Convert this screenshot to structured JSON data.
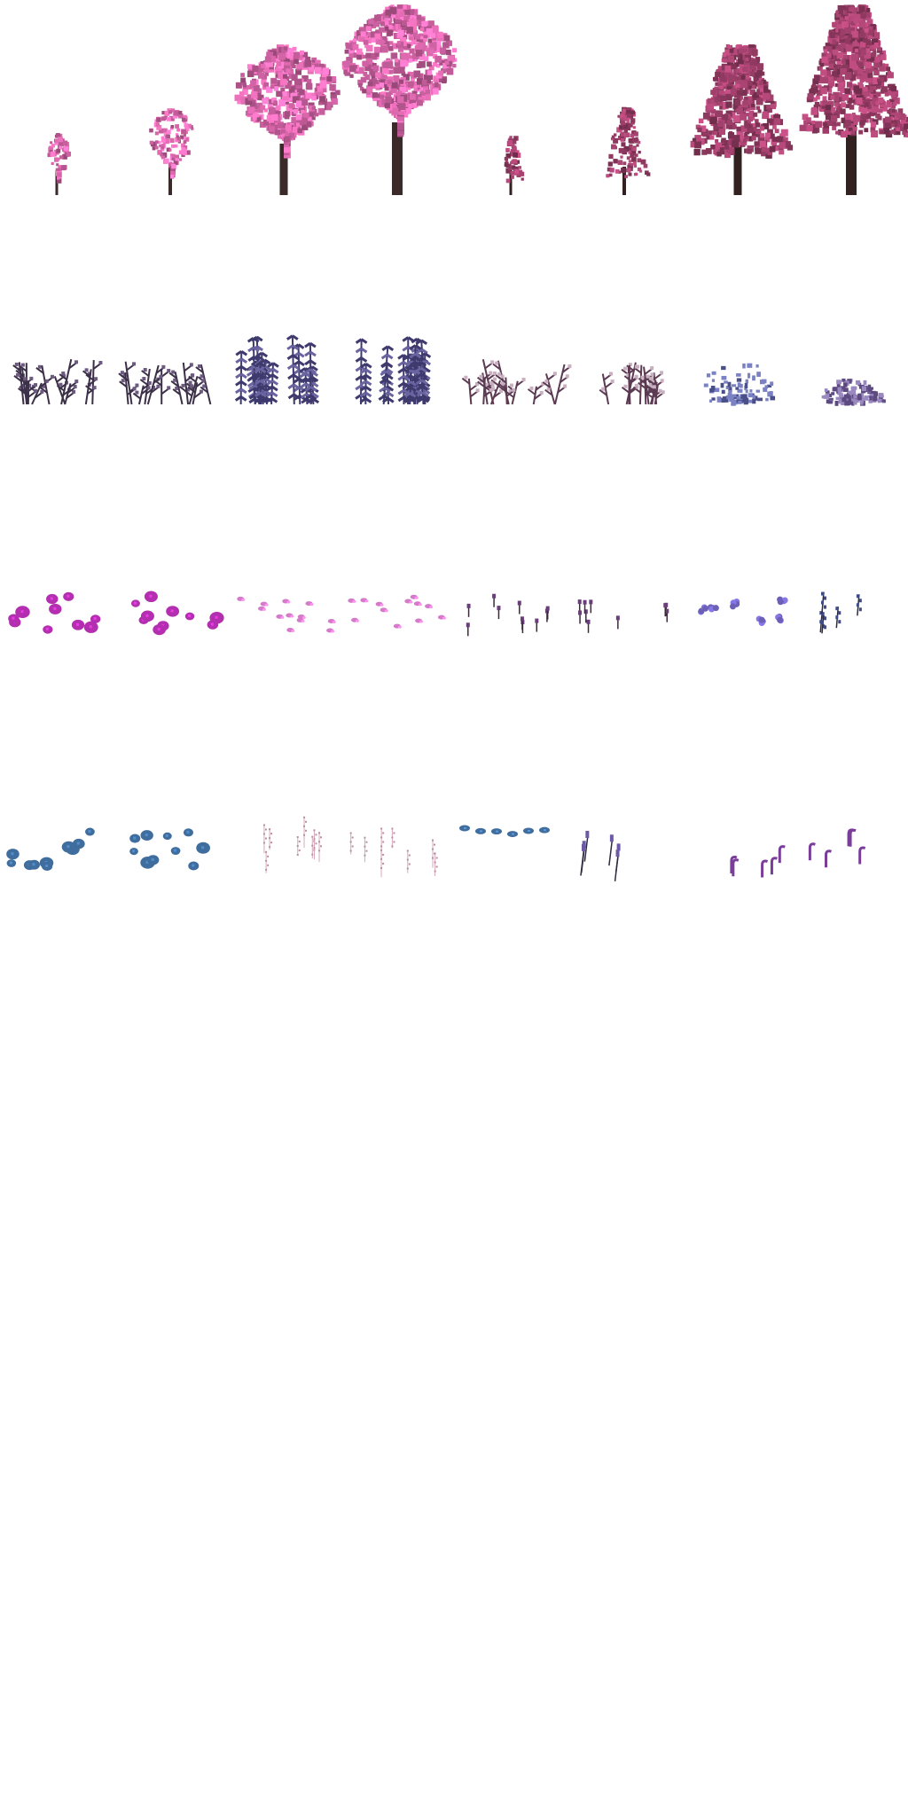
{
  "sheet": {
    "rows": [
      {
        "kind": "trees",
        "sprites": [
          {
            "name": "pink-tree-sapling-sprite",
            "type": "tree",
            "stage": 1,
            "foliage": "#d565a8",
            "trunk": "#3a2a2a"
          },
          {
            "name": "pink-tree-young-sprite",
            "type": "tree",
            "stage": 2,
            "foliage": "#d565a8",
            "trunk": "#3a2a2a"
          },
          {
            "name": "pink-tree-mature-sprite",
            "type": "tree",
            "stage": 3,
            "foliage": "#d565a8",
            "trunk": "#3a2a2a"
          },
          {
            "name": "pink-tree-large-sprite",
            "type": "tree",
            "stage": 4,
            "foliage": "#d565a8",
            "trunk": "#3a2a2a"
          },
          {
            "name": "mauve-tree-sapling-sprite",
            "type": "tree",
            "stage": 1,
            "foliage": "#9e3f6a",
            "trunk": "#332020"
          },
          {
            "name": "mauve-tree-young-sprite",
            "type": "tree",
            "stage": 2,
            "foliage": "#9e3f6a",
            "trunk": "#332020"
          },
          {
            "name": "mauve-tree-mature-sprite",
            "type": "tree",
            "stage": 3,
            "foliage": "#9e3f6a",
            "trunk": "#332020"
          },
          {
            "name": "mauve-tree-large-sprite",
            "type": "tree",
            "stage": 4,
            "foliage": "#9e3f6a",
            "trunk": "#332020"
          }
        ]
      },
      {
        "kind": "shrubs",
        "sprites": [
          {
            "name": "dark-thorn-shrub-a-sprite",
            "type": "shrub",
            "color": "#3b3048",
            "accent": "#6d5a80"
          },
          {
            "name": "dark-thorn-shrub-b-sprite",
            "type": "shrub",
            "color": "#3b3048",
            "accent": "#6d5a80"
          },
          {
            "name": "indigo-fern-shrub-a-sprite",
            "type": "fern",
            "color": "#3f3a6e",
            "accent": "#6a64a0"
          },
          {
            "name": "indigo-fern-shrub-b-sprite",
            "type": "fern",
            "color": "#3f3a6e",
            "accent": "#6a64a0"
          },
          {
            "name": "mauve-speckled-shrub-a-sprite",
            "type": "speckled",
            "color": "#5b3a52",
            "accent": "#c8b0c0"
          },
          {
            "name": "mauve-speckled-shrub-b-sprite",
            "type": "speckled",
            "color": "#5b3a52",
            "accent": "#c8b0c0"
          },
          {
            "name": "blue-violet-bush-sprite",
            "type": "bush",
            "color": "#4a4f8a",
            "accent": "#7a82c4"
          },
          {
            "name": "lavender-bush-sprite",
            "type": "bush-round",
            "color": "#5d4a80",
            "accent": "#9a88c0"
          }
        ]
      },
      {
        "kind": "ground-flowers",
        "sprites": [
          {
            "name": "magenta-flower-patch-a-sprite",
            "type": "blobs",
            "color": "#b32fb0"
          },
          {
            "name": "magenta-flower-patch-b-sprite",
            "type": "blobs",
            "color": "#b32fb0"
          },
          {
            "name": "pink-petal-patch-a-sprite",
            "type": "petals",
            "color": "#d47ac8"
          },
          {
            "name": "pink-petal-patch-b-sprite",
            "type": "petals",
            "color": "#d47ac8"
          },
          {
            "name": "purple-sprout-patch-a-sprite",
            "type": "sprouts",
            "color": "#6a3e7a"
          },
          {
            "name": "purple-sprout-patch-b-sprite",
            "type": "sprouts",
            "color": "#6a3e7a"
          },
          {
            "name": "violet-blossom-cluster-sprite",
            "type": "clusters",
            "color": "#6b5fb8"
          },
          {
            "name": "indigo-spike-flowers-sprite",
            "type": "spikes",
            "color": "#3e4c8a"
          }
        ]
      },
      {
        "kind": "wildflowers",
        "sprites": [
          {
            "name": "blue-flower-patch-a-sprite",
            "type": "blobs",
            "color": "#3f6d9e"
          },
          {
            "name": "blue-flower-patch-b-sprite",
            "type": "blobs",
            "color": "#3f6d9e"
          },
          {
            "name": "pale-pink-grass-a-sprite",
            "type": "pale-stems",
            "color": "#d8a8bc"
          },
          {
            "name": "pale-pink-grass-b-sprite",
            "type": "pale-stems",
            "color": "#d8a8bc"
          },
          {
            "name": "blue-leaf-trail-sprite",
            "type": "trail",
            "color": "#3f6d9e"
          },
          {
            "name": "lavender-stalks-sprite",
            "type": "stalks",
            "color": "#6c5aa8"
          },
          {
            "name": "purple-curl-sprouts-a-sprite",
            "type": "curls",
            "color": "#7a3e9a"
          },
          {
            "name": "purple-curl-sprouts-b-sprite",
            "type": "curls",
            "color": "#7a3e9a"
          }
        ]
      }
    ]
  }
}
